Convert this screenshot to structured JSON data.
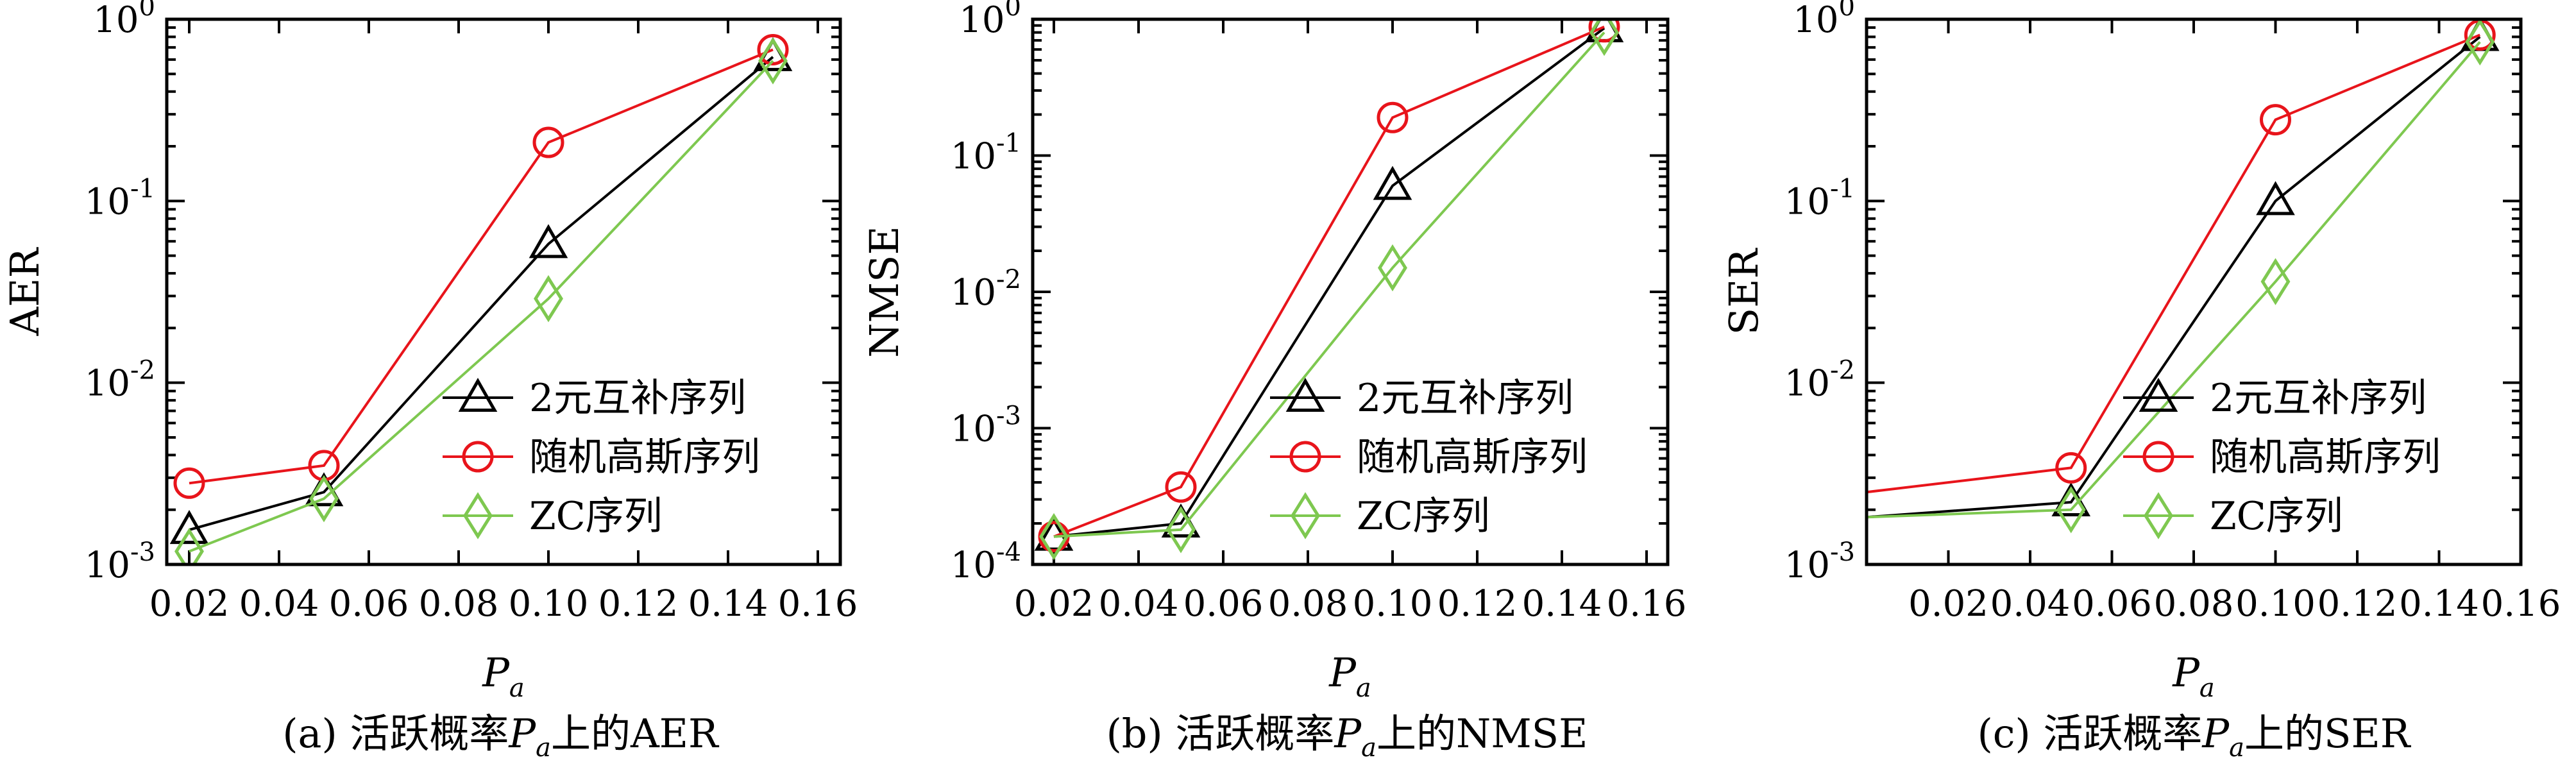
{
  "colors": {
    "series_0": "#000000",
    "series_1": "#e8141b",
    "series_2": "#7ec850"
  },
  "chart_data": [
    {
      "type": "line",
      "panel": "a",
      "caption": "(a) 活跃概率Pₐ上的AER",
      "caption_prefix": "(a) 活跃概率",
      "caption_suffix": "上的AER",
      "xlabel": "P",
      "xlabel_sub": "a",
      "ylabel": "AER",
      "y_scale": "log",
      "xlim": [
        0.015,
        0.165
      ],
      "ylim_exp": [
        -3,
        0
      ],
      "x_ticks": [
        "0.02",
        "0.04",
        "0.06",
        "0.08",
        "0.10",
        "0.12",
        "0.14",
        "0.16"
      ],
      "x_tick_values": [
        0.02,
        0.04,
        0.06,
        0.08,
        0.1,
        0.12,
        0.14,
        0.16
      ],
      "y_tick_exponents": [
        "-3",
        "-2",
        "-1",
        "0"
      ],
      "legend_position": "lower-right",
      "series": [
        {
          "name": "2元互补序列",
          "marker": "triangle",
          "x": [
            0.02,
            0.05,
            0.1,
            0.15
          ],
          "y": [
            0.00155,
            0.0025,
            0.058,
            0.62
          ]
        },
        {
          "name": "随机高斯序列",
          "marker": "circle",
          "x": [
            0.02,
            0.05,
            0.1,
            0.15
          ],
          "y": [
            0.0028,
            0.0035,
            0.21,
            0.68
          ]
        },
        {
          "name": "ZC序列",
          "marker": "diamond",
          "x": [
            0.02,
            0.05,
            0.1,
            0.15
          ],
          "y": [
            0.00118,
            0.0023,
            0.029,
            0.59
          ]
        }
      ]
    },
    {
      "type": "line",
      "panel": "b",
      "caption": "(b) 活跃概率Pₐ上的NMSE",
      "caption_prefix": "(b) 活跃概率",
      "caption_suffix": "上的NMSE",
      "xlabel": "P",
      "xlabel_sub": "a",
      "ylabel": "NMSE",
      "y_scale": "log",
      "xlim": [
        0.015,
        0.165
      ],
      "ylim_exp": [
        -4,
        0
      ],
      "x_ticks": [
        "0.02",
        "0.04",
        "0.06",
        "0.08",
        "0.10",
        "0.12",
        "0.14",
        "0.16"
      ],
      "x_tick_values": [
        0.02,
        0.04,
        0.06,
        0.08,
        0.1,
        0.12,
        0.14,
        0.16
      ],
      "y_tick_exponents": [
        "-4",
        "-3",
        "-2",
        "-1",
        "0"
      ],
      "legend_position": "lower-right",
      "series": [
        {
          "name": "2元互补序列",
          "marker": "triangle",
          "x": [
            0.02,
            0.05,
            0.1,
            0.15
          ],
          "y": [
            0.00016,
            0.0002,
            0.06,
            0.86
          ]
        },
        {
          "name": "随机高斯序列",
          "marker": "circle",
          "x": [
            0.02,
            0.05,
            0.1,
            0.15
          ],
          "y": [
            0.00016,
            0.00037,
            0.19,
            0.88
          ]
        },
        {
          "name": "ZC序列",
          "marker": "diamond",
          "x": [
            0.02,
            0.05,
            0.1,
            0.15
          ],
          "y": [
            0.00016,
            0.00018,
            0.015,
            0.8
          ]
        }
      ]
    },
    {
      "type": "line",
      "panel": "c",
      "caption": "(c) 活跃概率Pₐ上的SER",
      "caption_prefix": "(c) 活跃概率",
      "caption_suffix": "上的SER",
      "xlabel": "P",
      "xlabel_sub": "a",
      "ylabel": "SER",
      "y_scale": "log",
      "xlim": [
        0.0,
        0.16
      ],
      "ylim_exp": [
        -3,
        0
      ],
      "x_ticks": [
        "0.02",
        "0.04",
        "0.06",
        "0.08",
        "0.10",
        "0.12",
        "0.14",
        "0.16"
      ],
      "x_tick_values": [
        0.02,
        0.04,
        0.06,
        0.08,
        0.1,
        0.12,
        0.14,
        0.16
      ],
      "y_tick_exponents": [
        "-3",
        "-2",
        "-1",
        "0"
      ],
      "legend_position": "lower-right",
      "series": [
        {
          "name": "2元互补序列",
          "marker": "triangle",
          "x": [
            0.0,
            0.05,
            0.1,
            0.15
          ],
          "y": [
            0.00182,
            0.0022,
            0.1,
            0.8
          ],
          "marker_x": [
            0.05,
            0.1,
            0.15
          ]
        },
        {
          "name": "随机高斯序列",
          "marker": "circle",
          "x": [
            0.0,
            0.05,
            0.1,
            0.15
          ],
          "y": [
            0.0025,
            0.0034,
            0.28,
            0.82
          ],
          "marker_x": [
            0.05,
            0.1,
            0.15
          ]
        },
        {
          "name": "ZC序列",
          "marker": "diamond",
          "x": [
            0.0,
            0.05,
            0.1,
            0.15
          ],
          "y": [
            0.00182,
            0.002,
            0.036,
            0.75
          ],
          "marker_x": [
            0.05,
            0.1,
            0.15
          ]
        }
      ]
    }
  ]
}
